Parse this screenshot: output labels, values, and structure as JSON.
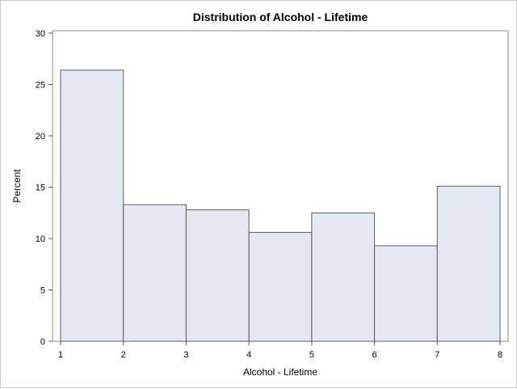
{
  "chart_data": {
    "type": "bar",
    "title": "Distribution of Alcohol - Lifetime",
    "xlabel": "Alcohol - Lifetime",
    "ylabel": "Percent",
    "bins": [
      {
        "from": 1,
        "to": 2,
        "value": 26.4
      },
      {
        "from": 2,
        "to": 3,
        "value": 13.3
      },
      {
        "from": 3,
        "to": 4,
        "value": 12.8
      },
      {
        "from": 4,
        "to": 5,
        "value": 10.6
      },
      {
        "from": 5,
        "to": 6,
        "value": 12.5
      },
      {
        "from": 6,
        "to": 7,
        "value": 9.3
      },
      {
        "from": 7,
        "to": 8,
        "value": 15.1
      }
    ],
    "xlim": [
      1,
      8
    ],
    "ylim": [
      0,
      30
    ],
    "xticks": [
      "1",
      "2",
      "3",
      "4",
      "5",
      "6",
      "7",
      "8"
    ],
    "yticks": [
      "0",
      "5",
      "10",
      "15",
      "20",
      "25",
      "30"
    ],
    "grid": false,
    "bar_fill": "#e4e8f2",
    "bar_stroke": "#5a5a5a"
  }
}
